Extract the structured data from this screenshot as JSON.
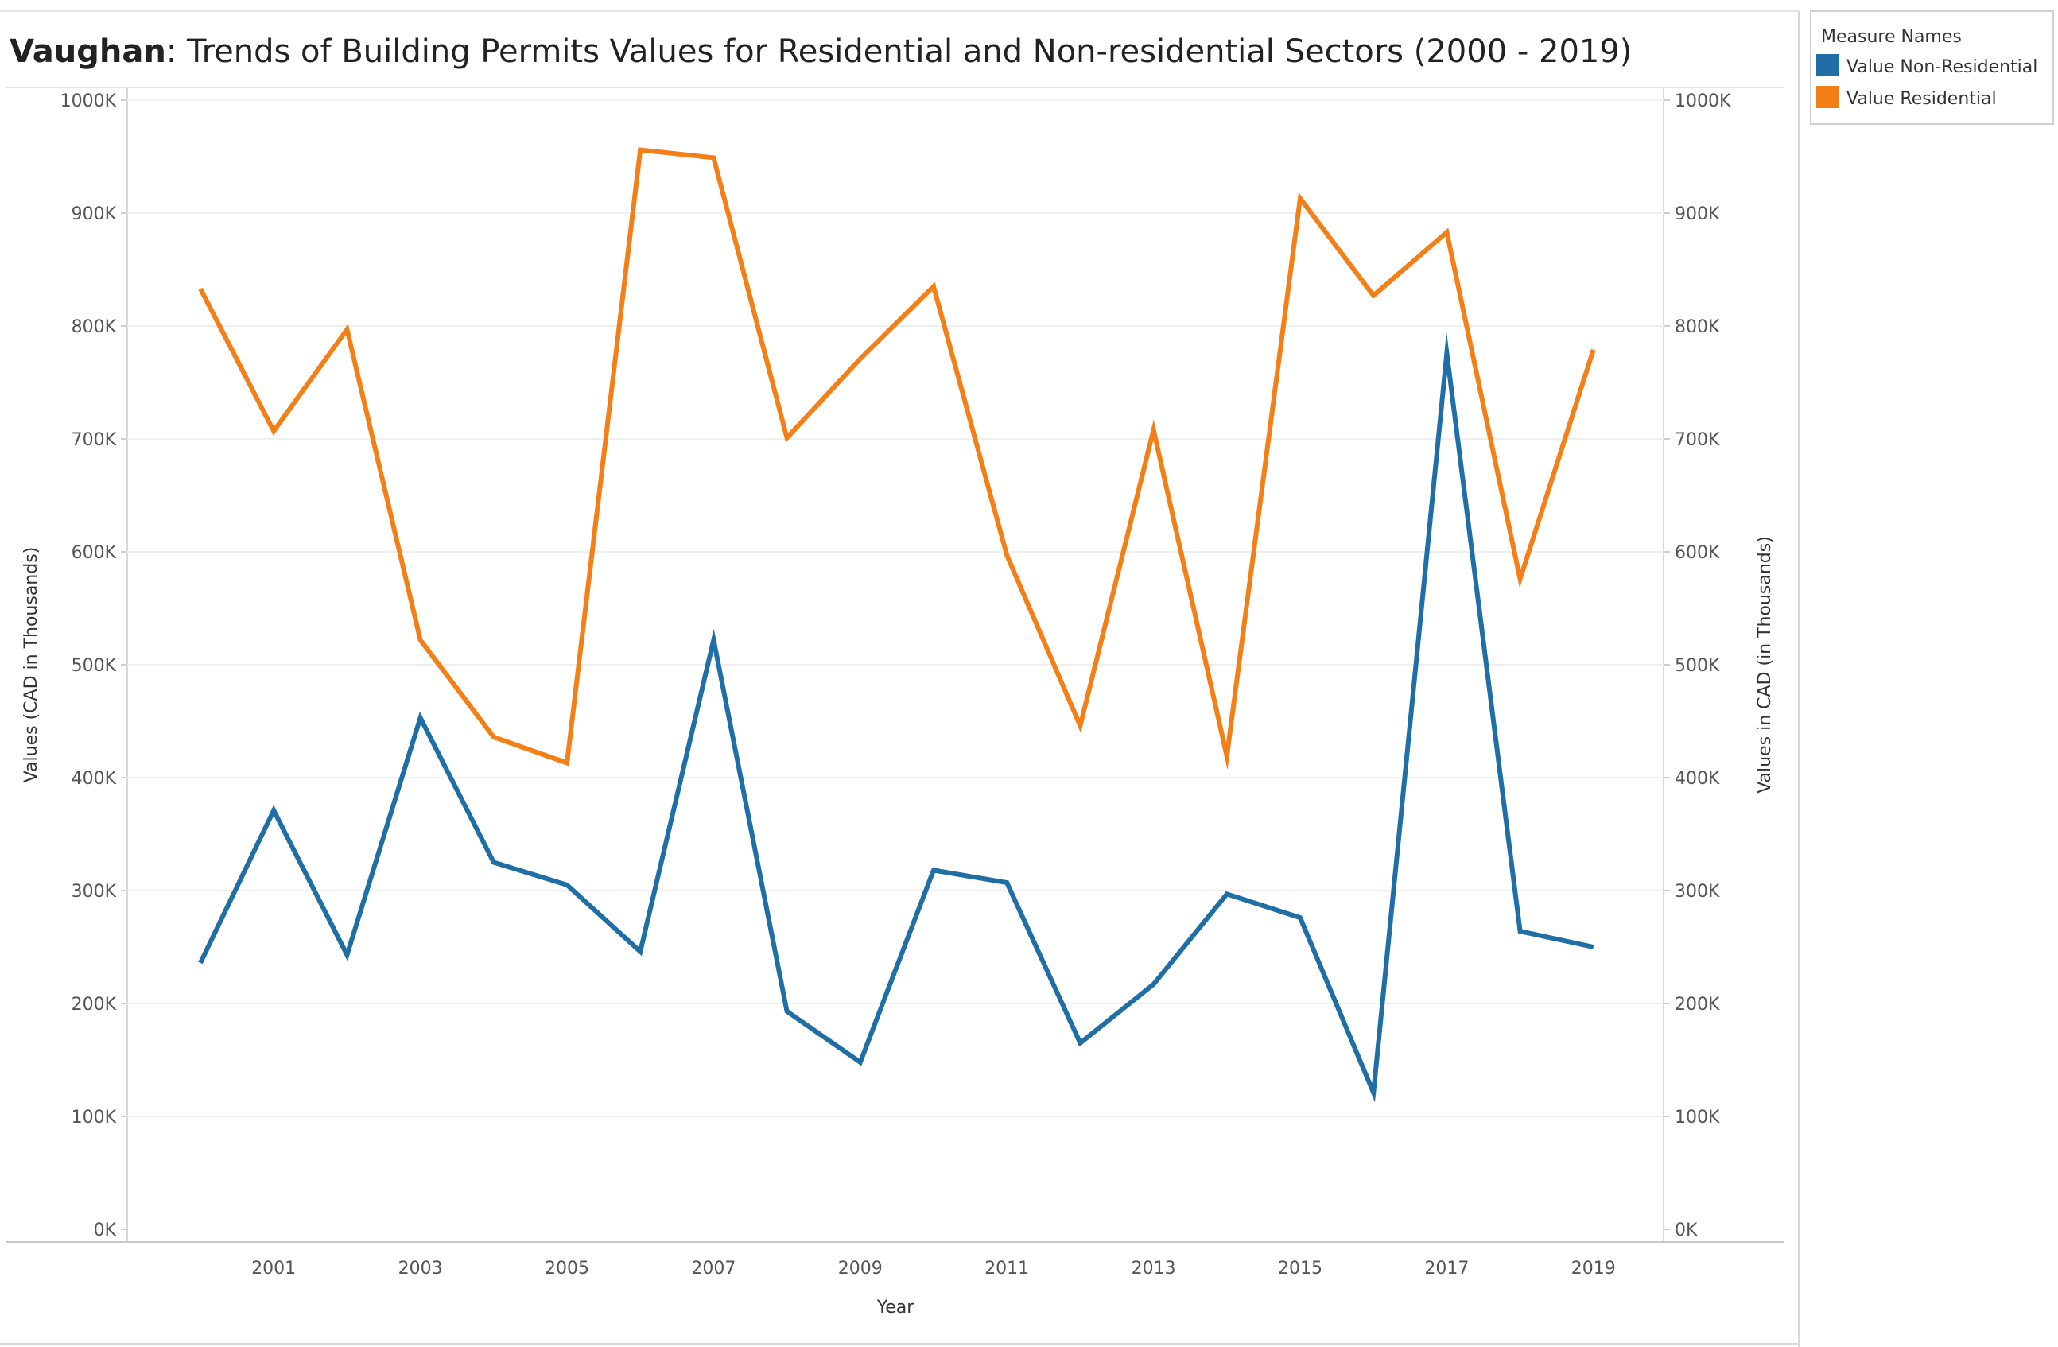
{
  "title": {
    "bold": "Vaughan",
    "rest": ": Trends of Building Permits Values for Residential and Non-residential Sectors (2000 - 2019)"
  },
  "legend": {
    "title": "Measure Names",
    "items": [
      {
        "label": "Value Non-Residential",
        "color": "#1f6fa6"
      },
      {
        "label": "Value Residential",
        "color": "#f47f17"
      }
    ]
  },
  "chart_data": {
    "type": "line",
    "x": [
      2000,
      2001,
      2002,
      2003,
      2004,
      2005,
      2006,
      2007,
      2008,
      2009,
      2010,
      2011,
      2012,
      2013,
      2014,
      2015,
      2016,
      2017,
      2018,
      2019
    ],
    "xticks": [
      "2001",
      "2003",
      "2005",
      "2007",
      "2009",
      "2011",
      "2013",
      "2015",
      "2017",
      "2019"
    ],
    "xlabel": "Year",
    "ylabel_left": "Values (CAD in Thousands)",
    "ylabel_right": "Values in CAD (in Thousands)",
    "yticks": [
      "0K",
      "100K",
      "200K",
      "300K",
      "400K",
      "500K",
      "600K",
      "700K",
      "800K",
      "900K",
      "1000K"
    ],
    "ylim": [
      0,
      1000
    ],
    "grid": true,
    "legend_position": "top-right",
    "series": [
      {
        "name": "Value Non-Residential",
        "color": "#1f6fa6",
        "values": [
          236,
          371,
          243,
          453,
          325,
          305,
          246,
          522,
          193,
          148,
          318,
          307,
          165,
          217,
          297,
          276,
          121,
          776,
          264,
          250
        ]
      },
      {
        "name": "Value Residential",
        "color": "#f47f17",
        "values": [
          833,
          707,
          797,
          522,
          436,
          413,
          956,
          949,
          701,
          771,
          835,
          597,
          446,
          708,
          419,
          913,
          827,
          883,
          576,
          779
        ]
      }
    ]
  }
}
